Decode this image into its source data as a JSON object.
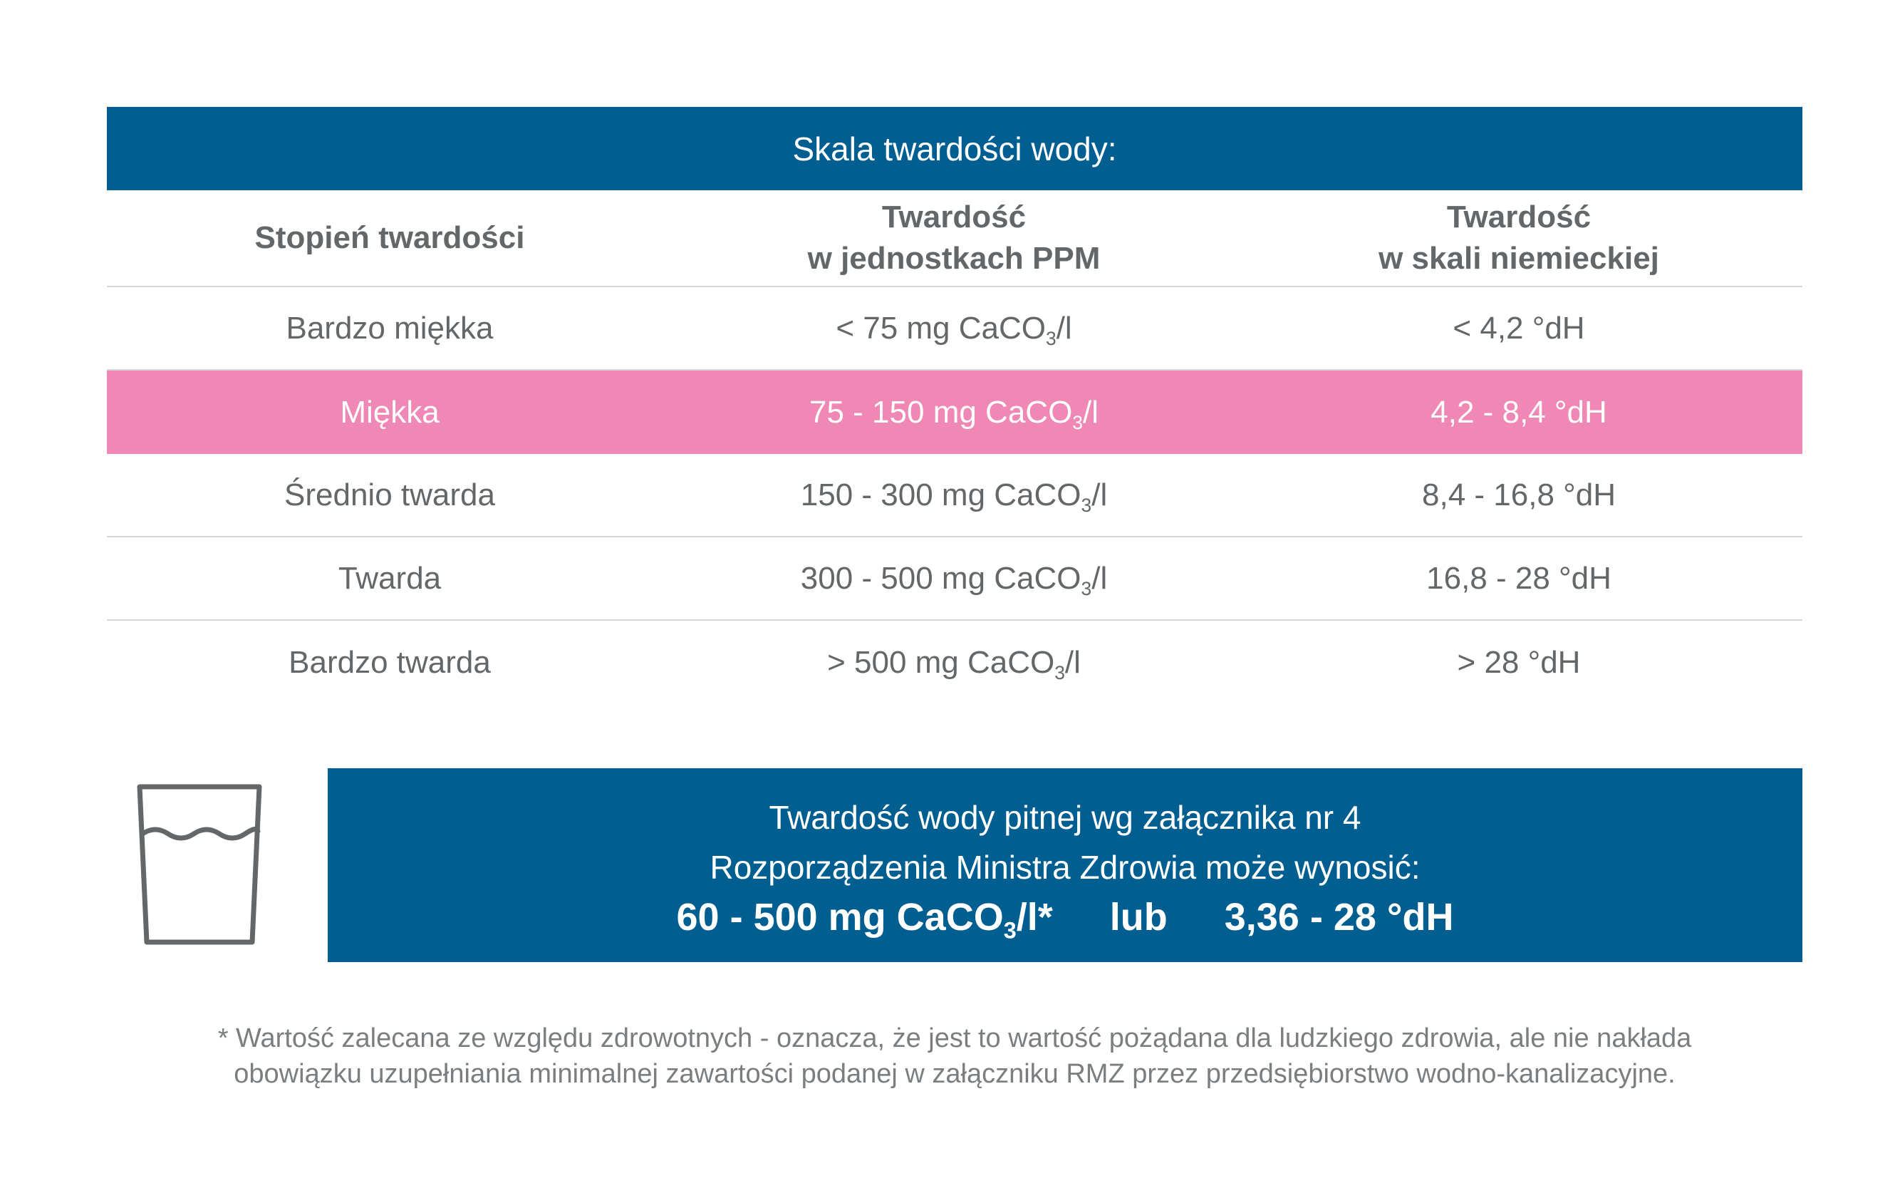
{
  "title": "Skala twardości wody:",
  "columns": [
    "Stopień twardości",
    "Twardość",
    "w jednostkach PPM",
    "Twardość",
    "w skali niemieckiej"
  ],
  "rows": [
    {
      "grade": "Bardzo miękka",
      "ppm_pre": "< 75 mg CaCO",
      "ppm_post": "/l",
      "dh": "< 4,2 °dH"
    },
    {
      "grade": "Miękka",
      "ppm_pre": "75 - 150 mg CaCO",
      "ppm_post": "/l",
      "dh": "4,2 - 8,4 °dH"
    },
    {
      "grade": "Średnio twarda",
      "ppm_pre": "150 - 300 mg CaCO",
      "ppm_post": "/l",
      "dh": "8,4 - 16,8 °dH"
    },
    {
      "grade": "Twarda",
      "ppm_pre": "300 - 500 mg CaCO",
      "ppm_post": "/l",
      "dh": "16,8 - 28 °dH"
    },
    {
      "grade": "Bardzo twarda",
      "ppm_pre": "> 500 mg CaCO",
      "ppm_post": "/l",
      "dh": "> 28 °dH"
    }
  ],
  "sub3": "3",
  "highlight_color": "#ef88b5",
  "brand_color": "#005e91",
  "icon": "water-glass-icon",
  "box": {
    "line1": "Twardość wody pitnej wg załącznika nr 4",
    "line2": "Rozporządzenia Ministra Zdrowia może wynosić:",
    "v1_pre": "60 - 500 mg CaCO",
    "v1_post": "/l*",
    "or": "lub",
    "v2": "3,36 - 28 °dH"
  },
  "footnote": {
    "line1": "* Wartość zalecana ze względu zdrowotnych - oznacza, że jest to wartość pożądana dla ludzkiego zdrowia, ale nie nakłada",
    "line2": "obowiązku uzupełniania minimalnej zawartości podanej w załączniku RMZ przez przedsiębiorstwo wodno-kanalizacyjne."
  }
}
